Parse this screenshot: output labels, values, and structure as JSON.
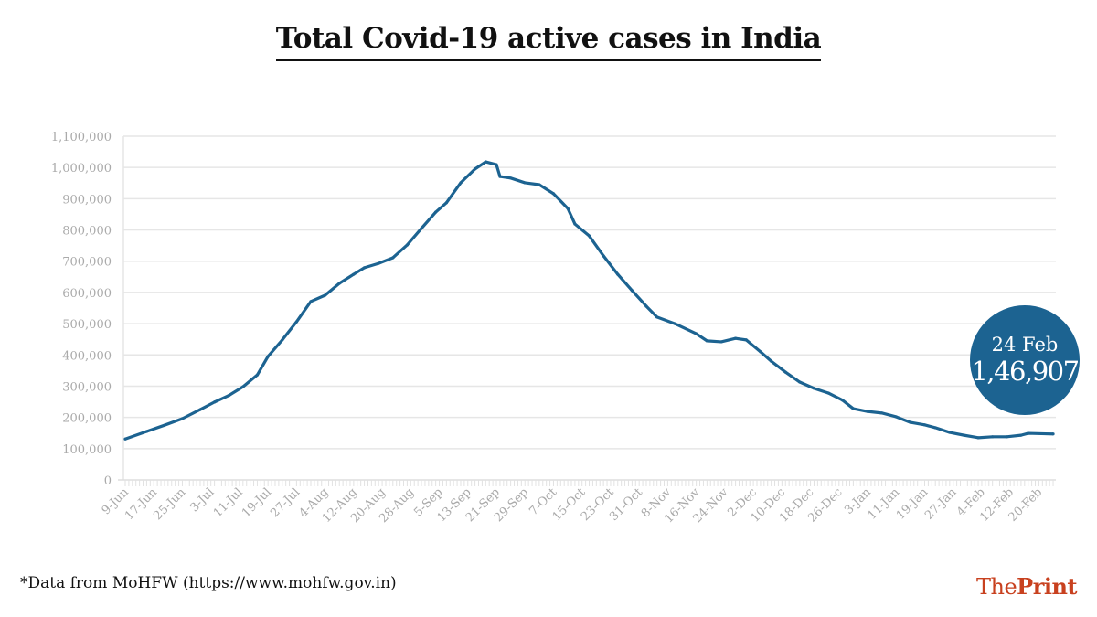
{
  "chart_data": {
    "type": "line",
    "title": "Total Covid-19 active cases in India",
    "xlabel": "",
    "ylabel": "",
    "ylim": [
      0,
      1100000
    ],
    "yticks": [
      "0",
      "100,000",
      "200,000",
      "300,000",
      "400,000",
      "500,000",
      "600,000",
      "700,000",
      "800,000",
      "900,000",
      "1,000,000",
      "1,100,000"
    ],
    "xticks": [
      "9-Jun",
      "17-Jun",
      "25-Jun",
      "3-Jul",
      "11-Jul",
      "19-Jul",
      "27-Jul",
      "4-Aug",
      "12-Aug",
      "20-Aug",
      "28-Aug",
      "5-Sep",
      "13-Sep",
      "21-Sep",
      "29-Sep",
      "7-Oct",
      "15-Oct",
      "23-Oct",
      "31-Oct",
      "8-Nov",
      "16-Nov",
      "24-Nov",
      "2-Dec",
      "10-Dec",
      "18-Dec",
      "26-Dec",
      "3-Jan",
      "11-Jan",
      "19-Jan",
      "27-Jan",
      "4-Feb",
      "12-Feb",
      "20-Feb"
    ],
    "grid": true,
    "line_color": "#1c6391",
    "series": [
      {
        "x": [
          "9-Jun",
          "15-Jun",
          "20-Jun",
          "25-Jun",
          "30-Jun",
          "4-Jul",
          "8-Jul",
          "12-Jul",
          "16-Jul",
          "19-Jul",
          "23-Jul",
          "27-Jul",
          "31-Jul",
          "4-Aug",
          "8-Aug",
          "12-Aug",
          "15-Aug",
          "19-Aug",
          "23-Aug",
          "27-Aug",
          "31-Aug",
          "4-Sep",
          "7-Sep",
          "11-Sep",
          "15-Sep",
          "18-Sep",
          "21-Sep",
          "22-Sep",
          "25-Sep",
          "29-Sep",
          "3-Oct",
          "7-Oct",
          "11-Oct",
          "13-Oct",
          "17-Oct",
          "21-Oct",
          "25-Oct",
          "29-Oct",
          "2-Nov",
          "5-Nov",
          "10-Nov",
          "16-Nov",
          "19-Nov",
          "23-Nov",
          "27-Nov",
          "30-Nov",
          "4-Dec",
          "7-Dec",
          "11-Dec",
          "15-Dec",
          "19-Dec",
          "23-Dec",
          "27-Dec",
          "30-Dec",
          "3-Jan",
          "7-Jan",
          "11-Jan",
          "15-Jan",
          "19-Jan",
          "22-Jan",
          "26-Jan",
          "30-Jan",
          "3-Feb",
          "7-Feb",
          "11-Feb",
          "15-Feb",
          "17-Feb",
          "24-Feb"
        ],
        "values": [
          131000,
          155000,
          175000,
          196000,
          225000,
          249000,
          270000,
          298000,
          336000,
          395000,
          448000,
          506000,
          571000,
          591000,
          629000,
          658000,
          679000,
          693000,
          711000,
          752000,
          805000,
          857000,
          887000,
          951000,
          995000,
          1018000,
          1009000,
          971000,
          966000,
          951000,
          945000,
          916000,
          869000,
          819000,
          781000,
          717000,
          658000,
          606000,
          556000,
          521000,
          500000,
          468000,
          445000,
          442000,
          453000,
          448000,
          410000,
          380000,
          345000,
          313000,
          293000,
          278000,
          255000,
          228000,
          219000,
          214000,
          202000,
          184000,
          176000,
          167000,
          152000,
          143000,
          135000,
          138000,
          138000,
          143000,
          149000,
          146907
        ]
      }
    ],
    "annotation": {
      "date": "24 Feb",
      "value": "1,46,907",
      "color": "#1c6391"
    }
  },
  "footer": {
    "source": "*Data from MoHFW (https://www.mohfw.gov.in)",
    "logo_the": "The",
    "logo_print": "Print",
    "logo_color": "#c8411f"
  }
}
